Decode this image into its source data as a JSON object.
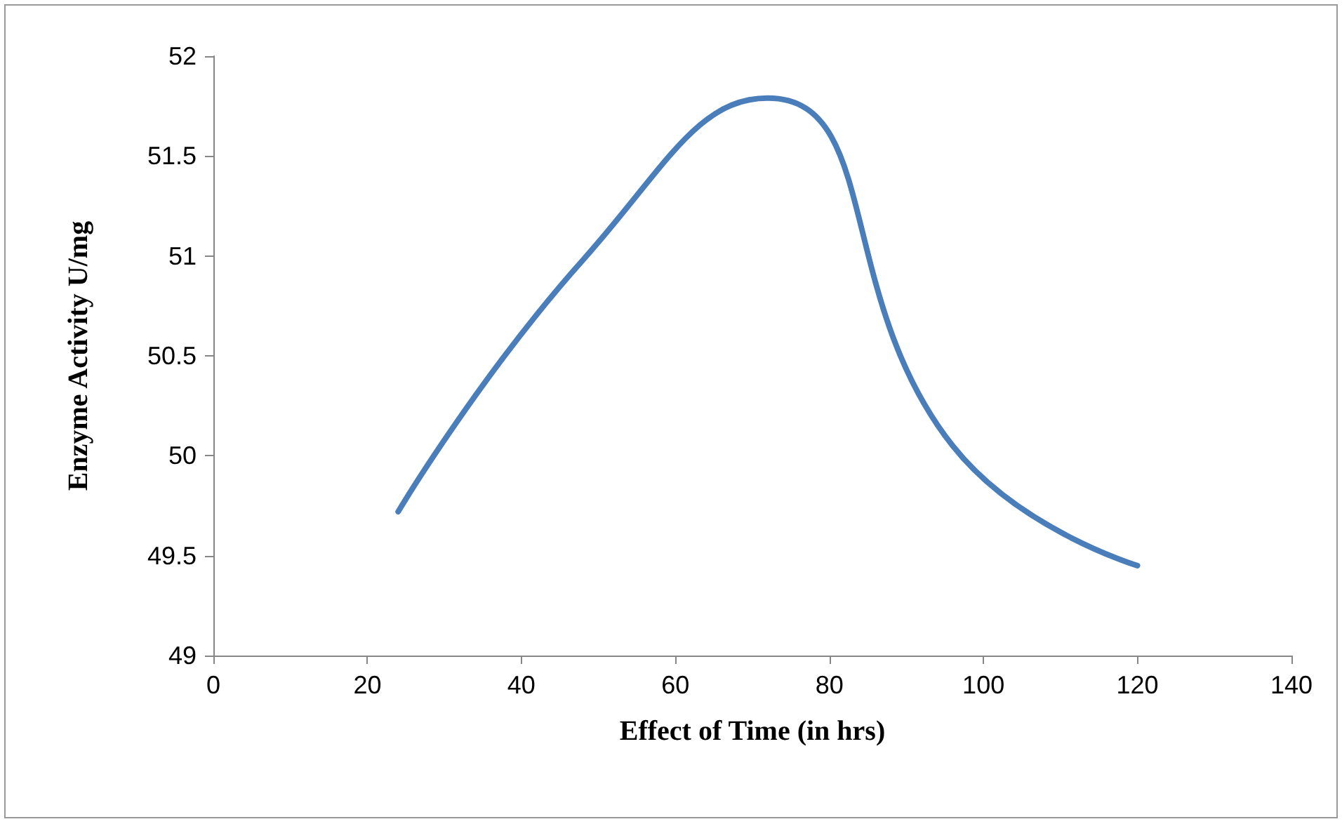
{
  "chart_data": {
    "type": "line",
    "xlabel": "Effect of Time (in hrs)",
    "ylabel": "Enzyme Activity U/mg",
    "x": [
      24,
      48,
      72,
      96,
      120
    ],
    "series": [
      {
        "color": "#4a7ebb",
        "values": [
          49.72,
          50.98,
          51.79,
          50.05,
          49.45
        ]
      }
    ],
    "xlim": [
      0,
      140
    ],
    "xticks": [
      0,
      20,
      40,
      60,
      80,
      100,
      120,
      140
    ],
    "ylim": [
      49,
      52
    ],
    "yticks": [
      {
        "value": 49,
        "label": "49"
      },
      {
        "value": 49.5,
        "label": "49.5"
      },
      {
        "value": 50,
        "label": "50"
      },
      {
        "value": 50.5,
        "label": "50.5"
      },
      {
        "value": 51,
        "label": "51"
      },
      {
        "value": 51.5,
        "label": "51.5"
      },
      {
        "value": 52,
        "label": "52"
      }
    ],
    "grid": false,
    "marker": "none",
    "line_style": "solid"
  }
}
